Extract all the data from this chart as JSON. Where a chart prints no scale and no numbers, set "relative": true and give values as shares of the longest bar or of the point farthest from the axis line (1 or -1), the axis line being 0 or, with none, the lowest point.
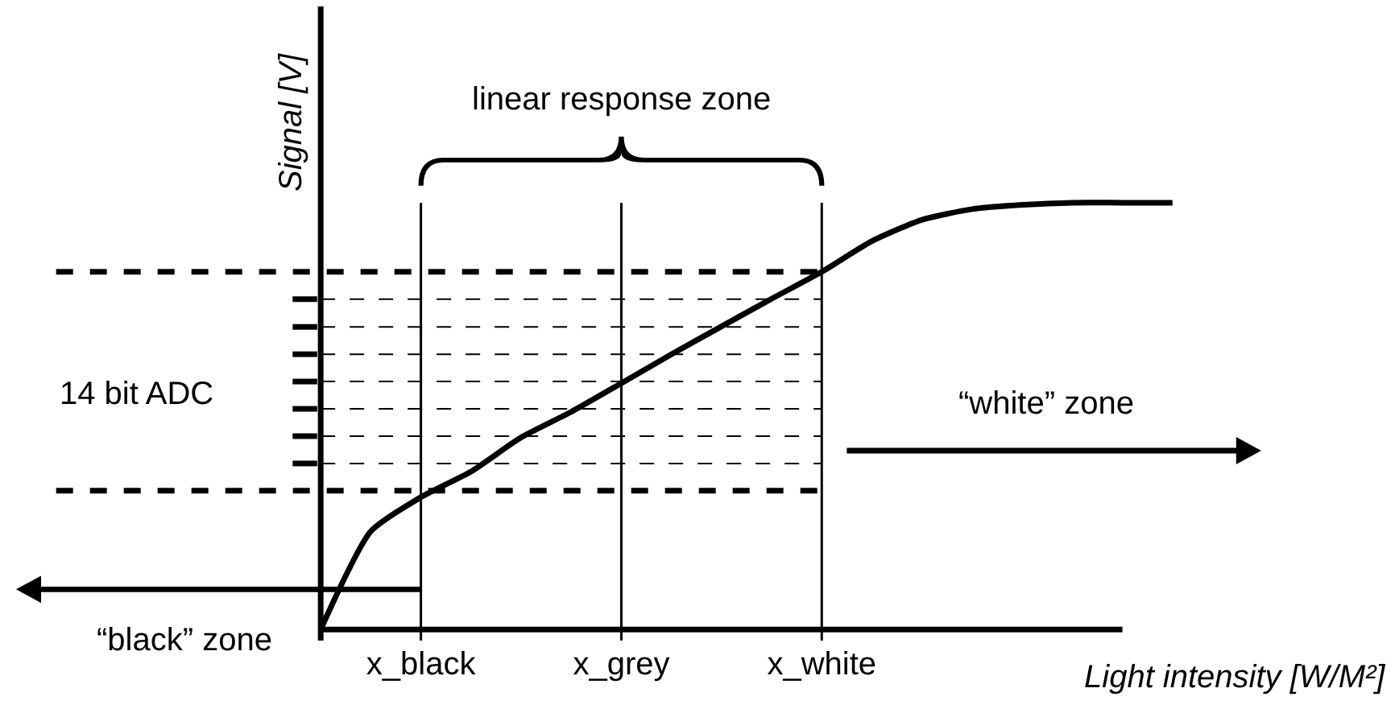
{
  "chart_data": {
    "type": "line",
    "relative": true,
    "xlabel": "Light intensity [W/M²]",
    "ylabel": "Signal [V]",
    "categories": [
      null,
      null,
      "x_black",
      null,
      null,
      null,
      "x_grey",
      null,
      null,
      null,
      "x_white",
      null,
      null,
      null,
      null,
      null,
      null,
      null
    ],
    "series": [
      {
        "color": "#000000",
        "values": [
          0,
          0.23,
          0.31,
          0.37,
          0.45,
          0.51,
          0.577,
          0.645,
          0.71,
          0.775,
          0.838,
          0.91,
          0.96,
          0.985,
          0.995,
          1,
          1,
          1
        ]
      }
    ],
    "ref_lines": [
      {
        "axis": "x",
        "value": "x_black",
        "line_style": "solid"
      },
      {
        "axis": "x",
        "value": "x_grey",
        "line_style": "solid"
      },
      {
        "axis": "x",
        "value": "x_white",
        "line_style": "solid"
      },
      {
        "axis": "y",
        "value": 0.838,
        "line_style": "dashed"
      },
      {
        "axis": "y",
        "value": 0.325,
        "line_style": "dashed"
      },
      {
        "axis": "y",
        "value": 0.774,
        "line_style": "dotted"
      },
      {
        "axis": "y",
        "value": 0.709,
        "line_style": "dotted"
      },
      {
        "axis": "y",
        "value": 0.645,
        "line_style": "dotted"
      },
      {
        "axis": "y",
        "value": 0.581,
        "line_style": "dotted"
      },
      {
        "axis": "y",
        "value": 0.517,
        "line_style": "dotted"
      },
      {
        "axis": "y",
        "value": 0.453,
        "line_style": "dotted"
      },
      {
        "axis": "y",
        "value": 0.389,
        "line_style": "dotted"
      }
    ],
    "annotations": [
      "linear response zone",
      "14 bit ADC",
      "“black” zone",
      "“white” zone"
    ],
    "tick_labels": "x",
    "marker": "none",
    "line_style": "solid"
  }
}
